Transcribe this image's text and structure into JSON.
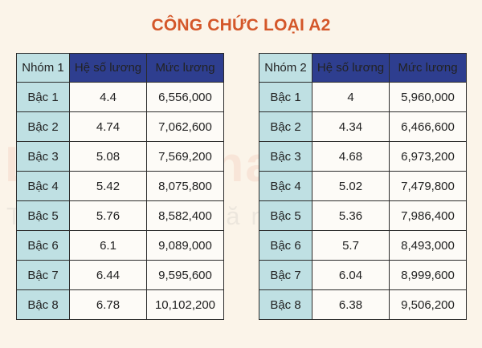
{
  "title": "CÔNG CHỨC LOẠI A2",
  "colors": {
    "title": "#d4572a",
    "header_blue": "#2e3e8f",
    "rank_cyan": "#bfe0e3",
    "background": "#fbf4e9"
  },
  "tables": [
    {
      "headers": [
        "Nhóm 1",
        "Hệ số lương",
        "Mức lương"
      ],
      "rows": [
        {
          "rank": "Bậc 1",
          "coef": "4.4",
          "salary": "6,556,000"
        },
        {
          "rank": "Bậc 2",
          "coef": "4.74",
          "salary": "7,062,600"
        },
        {
          "rank": "Bậc 3",
          "coef": "5.08",
          "salary": "7,569,200"
        },
        {
          "rank": "Bậc 4",
          "coef": "5.42",
          "salary": "8,075,800"
        },
        {
          "rank": "Bậc 5",
          "coef": "5.76",
          "salary": "8,582,400"
        },
        {
          "rank": "Bậc 6",
          "coef": "6.1",
          "salary": "9,089,000"
        },
        {
          "rank": "Bậc 7",
          "coef": "6.44",
          "salary": "9,595,600"
        },
        {
          "rank": "Bậc 8",
          "coef": "6.78",
          "salary": "10,102,200"
        }
      ]
    },
    {
      "headers": [
        "Nhóm 2",
        "Hệ số lương",
        "Mức lương"
      ],
      "rows": [
        {
          "rank": "Bậc 1",
          "coef": "4",
          "salary": "5,960,000"
        },
        {
          "rank": "Bậc 2",
          "coef": "4.34",
          "salary": "6,466,600"
        },
        {
          "rank": "Bậc 3",
          "coef": "4.68",
          "salary": "6,973,200"
        },
        {
          "rank": "Bậc 4",
          "coef": "5.02",
          "salary": "7,479,800"
        },
        {
          "rank": "Bậc 5",
          "coef": "5.36",
          "salary": "7,986,400"
        },
        {
          "rank": "Bậc 6",
          "coef": "5.7",
          "salary": "8,493,000"
        },
        {
          "rank": "Bậc 7",
          "coef": "6.04",
          "salary": "8,999,600"
        },
        {
          "rank": "Bậc 8",
          "coef": "6.38",
          "salary": "9,506,200"
        }
      ]
    }
  ],
  "watermark": {
    "brand": "LuatVietnam",
    "tagline": "Tiện ích văn bản luật"
  }
}
